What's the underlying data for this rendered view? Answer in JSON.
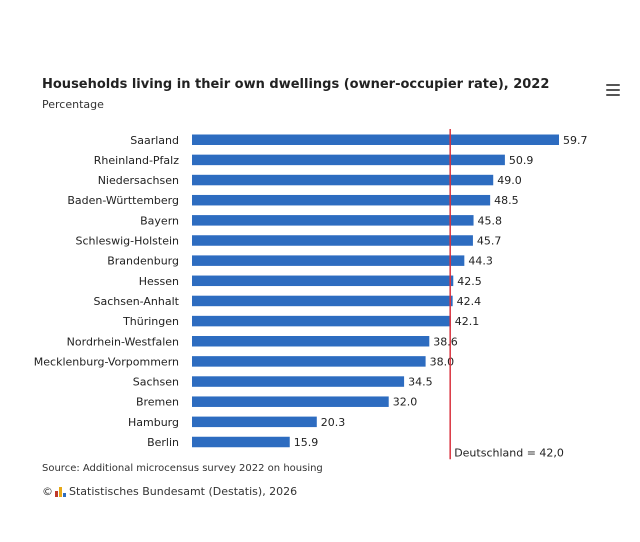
{
  "header": {
    "title": "Households living in their own dwellings (owner-occupier rate), 2022",
    "subtitle": "Percentage",
    "menu_icon": "hamburger-menu-icon"
  },
  "footer": {
    "source": "Source: Additional microcensus survey 2022 on housing",
    "copyright_symbol": "©",
    "credit": "Statistisches Bundesamt (Destatis), 2026"
  },
  "colors": {
    "bar": "#2d6cc0",
    "reference_line": "#d9333f",
    "logo": [
      "#c0392b",
      "#e6a817",
      "#2d6cc0"
    ]
  },
  "chart_data": {
    "type": "bar",
    "orientation": "horizontal",
    "title": "Households living in their own dwellings (owner-occupier rate), 2022",
    "subtitle": "Percentage",
    "categories": [
      "Saarland",
      "Rheinland-Pfalz",
      "Niedersachsen",
      "Baden-Württemberg",
      "Bayern",
      "Schleswig-Holstein",
      "Brandenburg",
      "Hessen",
      "Sachsen-Anhalt",
      "Thüringen",
      "Nordrhein-Westfalen",
      "Mecklenburg-Vorpommern",
      "Sachsen",
      "Bremen",
      "Hamburg",
      "Berlin"
    ],
    "values": [
      59.7,
      50.9,
      49.0,
      48.5,
      45.8,
      45.7,
      44.3,
      42.5,
      42.4,
      42.1,
      38.6,
      38.0,
      34.5,
      32.0,
      20.3,
      15.9
    ],
    "value_labels": [
      "59.7",
      "50.9",
      "49.0",
      "48.5",
      "45.8",
      "45.7",
      "44.3",
      "42.5",
      "42.4",
      "42.1",
      "38.6",
      "38.0",
      "34.5",
      "32.0",
      "20.3",
      "15.9"
    ],
    "reference_line": {
      "value": 42.0,
      "label": "Deutschland = 42,0"
    },
    "xlim": [
      0,
      62
    ],
    "grid": false,
    "legend": "none"
  }
}
